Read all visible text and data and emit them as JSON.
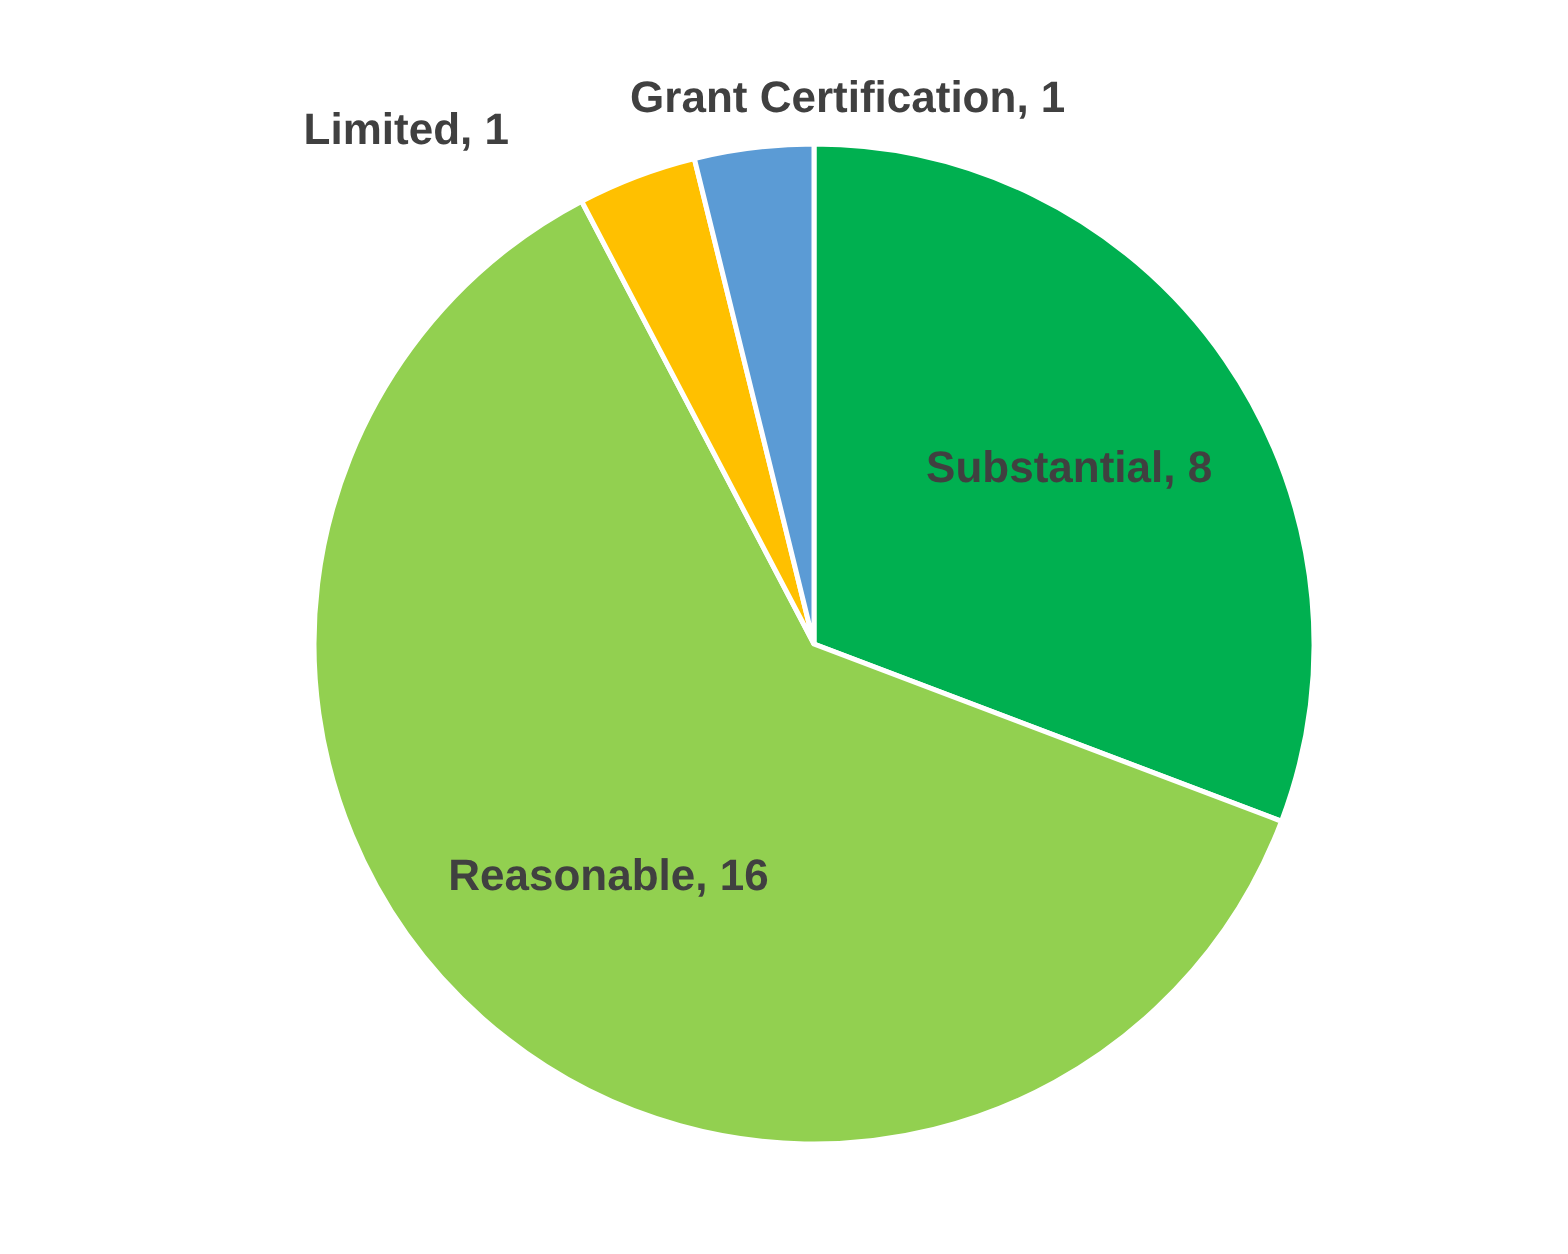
{
  "chart_data": {
    "type": "pie",
    "categories": [
      "Substantial",
      "Reasonable",
      "Limited",
      "Grant Certification"
    ],
    "values": [
      8,
      16,
      1,
      1
    ],
    "colors": [
      "#00b050",
      "#92d050",
      "#ffc000",
      "#5b9bd5"
    ],
    "value_labels": [
      ", 8",
      ", 16",
      ", 1",
      ", 1"
    ]
  }
}
